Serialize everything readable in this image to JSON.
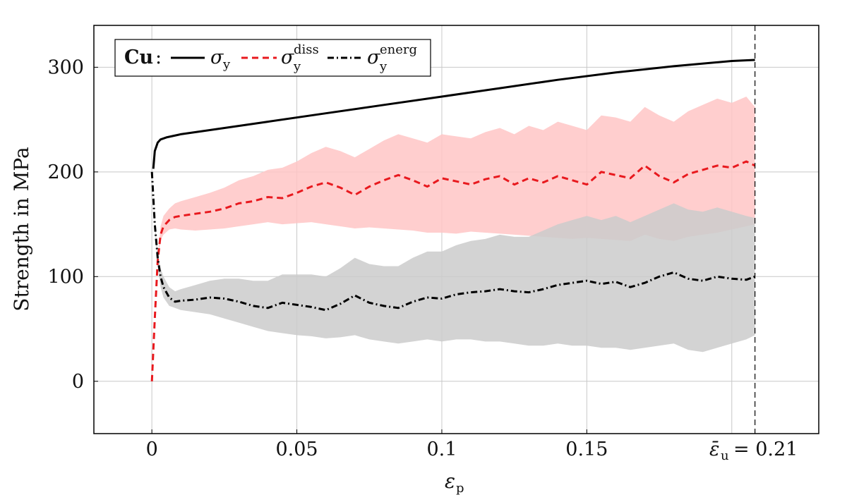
{
  "chart_data": {
    "type": "line",
    "title": "",
    "xlabel_main": "ε",
    "xlabel_sub": "p",
    "ylabel": "Strength in MPa",
    "xlim": [
      -0.02,
      0.23
    ],
    "ylim": [
      -50,
      340
    ],
    "grid": true,
    "x_ticks": [
      0,
      0.05,
      0.1,
      0.15
    ],
    "x_tick_labels": [
      "0",
      "0.05",
      "0.1",
      "0.15"
    ],
    "y_ticks": [
      0,
      100,
      200,
      300
    ],
    "y_tick_labels": [
      "0",
      "100",
      "200",
      "300"
    ],
    "marker": {
      "x": 0.208,
      "label_main": "ε̄",
      "label_sub": "u",
      "label_value": "= 0.21"
    },
    "legend": {
      "placement": "top-left",
      "material": "Cu",
      "material_suffix": ":",
      "entries": [
        {
          "symbol": "σ",
          "sub": "y",
          "sup": "",
          "color": "#000000",
          "dash": "solid"
        },
        {
          "symbol": "σ",
          "sub": "y",
          "sup": "diss",
          "color": "#e8191e",
          "dash": "dashed"
        },
        {
          "symbol": "σ",
          "sub": "y",
          "sup": "energ",
          "color": "#000000",
          "dash": "dashdot"
        }
      ]
    },
    "series": [
      {
        "key": "sigma_y",
        "color": "#000000",
        "x": [
          0.0005,
          0.001,
          0.002,
          0.003,
          0.005,
          0.01,
          0.02,
          0.04,
          0.06,
          0.08,
          0.1,
          0.12,
          0.14,
          0.16,
          0.18,
          0.2,
          0.208
        ],
        "y": [
          203,
          220,
          228,
          231,
          233,
          236,
          240,
          248,
          256,
          264,
          272,
          280,
          288,
          295,
          301,
          306,
          307
        ]
      },
      {
        "key": "sigma_y_diss",
        "color": "#e8191e",
        "band_color": "#ffc6c6",
        "x": [
          0,
          0.001,
          0.002,
          0.003,
          0.004,
          0.006,
          0.008,
          0.01,
          0.015,
          0.02,
          0.025,
          0.03,
          0.035,
          0.04,
          0.045,
          0.05,
          0.055,
          0.06,
          0.065,
          0.07,
          0.075,
          0.08,
          0.085,
          0.09,
          0.095,
          0.1,
          0.105,
          0.11,
          0.115,
          0.12,
          0.125,
          0.13,
          0.135,
          0.14,
          0.145,
          0.15,
          0.155,
          0.16,
          0.165,
          0.17,
          0.175,
          0.18,
          0.185,
          0.19,
          0.195,
          0.2,
          0.205,
          0.208
        ],
        "y": [
          0,
          60,
          115,
          140,
          148,
          154,
          157,
          158,
          160,
          162,
          165,
          170,
          172,
          176,
          175,
          180,
          186,
          190,
          185,
          178,
          186,
          192,
          197,
          192,
          186,
          194,
          191,
          188,
          193,
          196,
          188,
          194,
          190,
          196,
          192,
          188,
          200,
          197,
          194,
          206,
          196,
          190,
          198,
          202,
          206,
          204,
          210,
          206
        ],
        "band_lower": [
          0,
          60,
          115,
          135,
          140,
          145,
          146,
          145,
          144,
          145,
          146,
          148,
          150,
          152,
          150,
          151,
          152,
          150,
          148,
          146,
          147,
          146,
          145,
          144,
          142,
          142,
          141,
          143,
          142,
          141,
          140,
          139,
          138,
          137,
          136,
          137,
          136,
          135,
          134,
          140,
          136,
          134,
          138,
          140,
          142,
          145,
          148,
          150
        ],
        "band_upper": [
          0,
          60,
          118,
          148,
          158,
          165,
          170,
          172,
          176,
          180,
          185,
          192,
          196,
          202,
          204,
          210,
          218,
          224,
          220,
          214,
          222,
          230,
          236,
          232,
          228,
          236,
          234,
          232,
          238,
          242,
          236,
          244,
          240,
          248,
          244,
          240,
          254,
          252,
          248,
          262,
          254,
          248,
          258,
          264,
          270,
          266,
          272,
          262
        ]
      },
      {
        "key": "sigma_y_energ",
        "color": "#000000",
        "band_color": "#cbcbcb",
        "x": [
          0,
          0.001,
          0.002,
          0.003,
          0.004,
          0.006,
          0.008,
          0.01,
          0.015,
          0.02,
          0.025,
          0.03,
          0.035,
          0.04,
          0.045,
          0.05,
          0.055,
          0.06,
          0.065,
          0.07,
          0.075,
          0.08,
          0.085,
          0.09,
          0.095,
          0.1,
          0.105,
          0.11,
          0.115,
          0.12,
          0.125,
          0.13,
          0.135,
          0.14,
          0.145,
          0.15,
          0.155,
          0.16,
          0.165,
          0.17,
          0.175,
          0.18,
          0.185,
          0.19,
          0.195,
          0.2,
          0.205,
          0.208
        ],
        "y": [
          200,
          150,
          118,
          100,
          90,
          80,
          76,
          77,
          78,
          80,
          79,
          76,
          72,
          70,
          75,
          73,
          71,
          68,
          74,
          82,
          75,
          72,
          70,
          76,
          80,
          79,
          83,
          85,
          86,
          88,
          86,
          85,
          88,
          92,
          94,
          96,
          93,
          95,
          90,
          94,
          100,
          104,
          98,
          96,
          100,
          98,
          97,
          100
        ],
        "band_lower": [
          200,
          148,
          110,
          90,
          80,
          72,
          70,
          68,
          66,
          64,
          60,
          56,
          52,
          48,
          46,
          44,
          43,
          41,
          42,
          44,
          40,
          38,
          36,
          38,
          40,
          38,
          40,
          40,
          38,
          38,
          36,
          34,
          34,
          36,
          34,
          34,
          32,
          32,
          30,
          32,
          34,
          36,
          30,
          28,
          32,
          36,
          40,
          44
        ],
        "band_upper": [
          200,
          152,
          124,
          108,
          100,
          90,
          86,
          88,
          92,
          96,
          98,
          98,
          96,
          96,
          102,
          102,
          102,
          100,
          108,
          118,
          112,
          110,
          110,
          118,
          124,
          124,
          130,
          134,
          136,
          140,
          138,
          138,
          144,
          150,
          154,
          158,
          154,
          158,
          152,
          158,
          164,
          170,
          164,
          162,
          166,
          162,
          158,
          156
        ]
      }
    ]
  }
}
